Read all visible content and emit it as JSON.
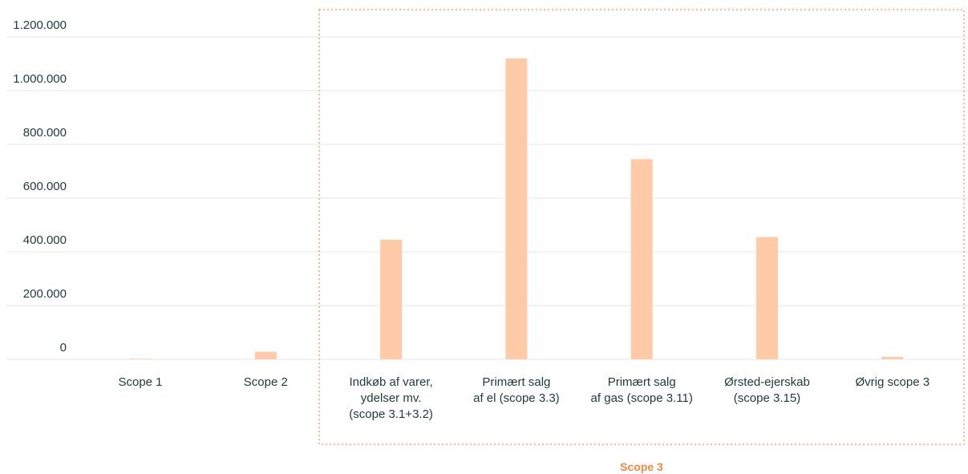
{
  "chart_data": {
    "type": "bar",
    "title": "",
    "xlabel": "",
    "ylabel": "",
    "ylim": [
      0,
      1200000
    ],
    "yticks": [
      {
        "value": 0,
        "label": "0"
      },
      {
        "value": 200000,
        "label": "200.000"
      },
      {
        "value": 400000,
        "label": "400.000"
      },
      {
        "value": 600000,
        "label": "600.000"
      },
      {
        "value": 800000,
        "label": "800.000"
      },
      {
        "value": 1000000,
        "label": "1.000.000"
      },
      {
        "value": 1200000,
        "label": "1.200.000"
      }
    ],
    "grid": true,
    "categories": [
      [
        "Scope 1"
      ],
      [
        "Scope 2"
      ],
      [
        "Indkøb af varer,",
        "ydelser mv.",
        "(scope 3.1+3.2)"
      ],
      [
        "Primært salg",
        "af el (scope 3.3)"
      ],
      [
        "Primært salg",
        "af gas (scope 3.11)"
      ],
      [
        "Ørsted-ejerskab",
        "(scope 3.15)"
      ],
      [
        "Øvrig scope 3"
      ]
    ],
    "values": [
      2000,
      28000,
      445000,
      1120000,
      745000,
      455000,
      9000
    ],
    "group": {
      "label": "Scope 3",
      "first_index": 2,
      "last_index": 6
    },
    "colors": {
      "bar": "#ffcaa8",
      "grid": "#e4e4e4",
      "group_border": "#f5a470",
      "group_label": "#f0883f",
      "text": "#1e3a3a"
    }
  }
}
